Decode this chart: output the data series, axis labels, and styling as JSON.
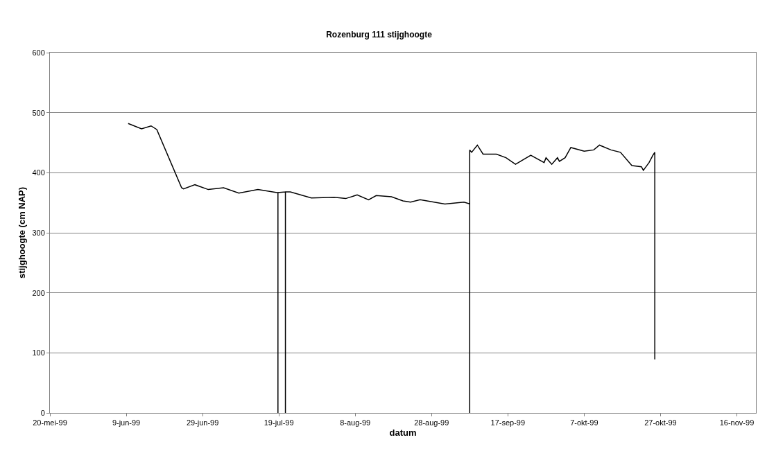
{
  "chart_data": {
    "type": "line",
    "title": "Rozenburg 111 stijghoogte",
    "xlabel": "datum",
    "ylabel": "stijghoogte (cm NAP)",
    "x": [
      "1999-06-09T12:00",
      "1999-06-13",
      "1999-06-15T12:00",
      "1999-06-17",
      "1999-06-23T12:00",
      "1999-06-24",
      "1999-06-27",
      "1999-06-30T12:00",
      "1999-07-04T12:00",
      "1999-07-08T12:00",
      "1999-07-13T12:00",
      "1999-07-18T12:00",
      "1999-07-18T18:00",
      "1999-07-18T18:00",
      "1999-07-18T18:00",
      "1999-07-20T17:00",
      "1999-07-20T17:00",
      "1999-07-20T17:00",
      "1999-07-22",
      "1999-07-27T12:00",
      "1999-08-02T12:00",
      "1999-08-05T12:00",
      "1999-08-08T12:00",
      "1999-08-11T12:00",
      "1999-08-13T12:00",
      "1999-08-17T12:00",
      "1999-08-20T12:00",
      "1999-08-22T12:00",
      "1999-08-25",
      "1999-08-31T12:00",
      "1999-09-05T12:00",
      "1999-09-07",
      "1999-09-07",
      "1999-09-07",
      "1999-09-07T12:00",
      "1999-09-09",
      "1999-09-10T12:00",
      "1999-09-14",
      "1999-09-16T12:00",
      "1999-09-19",
      "1999-09-23",
      "1999-09-26T12:00",
      "1999-09-27",
      "1999-09-28T12:00",
      "1999-09-30",
      "1999-09-30T12:00",
      "1999-10-02",
      "1999-10-03T12:00",
      "1999-10-07",
      "1999-10-09T12:00",
      "1999-10-11",
      "1999-10-14",
      "1999-10-16T12:00",
      "1999-10-19T12:00",
      "1999-10-22",
      "1999-10-22T12:00",
      "1999-10-24",
      "1999-10-25",
      "1999-10-25T12:00",
      "1999-10-25T12:00"
    ],
    "series": [
      {
        "color": "#000000",
        "values": [
          482,
          473,
          478,
          472,
          375,
          373,
          380,
          372,
          375,
          366,
          372,
          367,
          367,
          0,
          367,
          368,
          0,
          368,
          368,
          358,
          359,
          357,
          363,
          355,
          362,
          360,
          353,
          351,
          355,
          348,
          351,
          348,
          0,
          438,
          434,
          446,
          431,
          431,
          425,
          414,
          429,
          417,
          425,
          414,
          425,
          419,
          425,
          442,
          436,
          438,
          446,
          438,
          434,
          412,
          410,
          404,
          417,
          429,
          434,
          89
        ]
      }
    ],
    "xlim": [
      "1999-05-20",
      "1999-11-21"
    ],
    "xticks": [
      {
        "value": "1999-05-20",
        "label": "20-mei-99"
      },
      {
        "value": "1999-06-09",
        "label": "9-jun-99"
      },
      {
        "value": "1999-06-29",
        "label": "29-jun-99"
      },
      {
        "value": "1999-07-19",
        "label": "19-jul-99"
      },
      {
        "value": "1999-08-08",
        "label": "8-aug-99"
      },
      {
        "value": "1999-08-28",
        "label": "28-aug-99"
      },
      {
        "value": "1999-09-17",
        "label": "17-sep-99"
      },
      {
        "value": "1999-10-07",
        "label": "7-okt-99"
      },
      {
        "value": "1999-10-27",
        "label": "27-okt-99"
      },
      {
        "value": "1999-11-16",
        "label": "16-nov-99"
      }
    ],
    "ylim": [
      0,
      600
    ],
    "yticks": [
      0,
      100,
      200,
      300,
      400,
      500,
      600
    ],
    "grid": "y",
    "marker": "none",
    "line_style": "solid"
  }
}
